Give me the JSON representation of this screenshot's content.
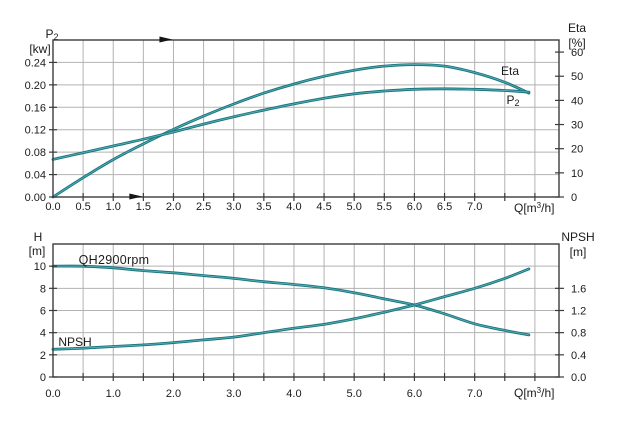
{
  "colors": {
    "curve": "#1a757e",
    "curve_highlight": "#58aeb4",
    "grid": "#b2b2b2",
    "axis": "#3c3c3c",
    "text": "#1b1b1b",
    "marker": "#151515"
  },
  "labels": {
    "top": {
      "left_title_base": "P",
      "left_title_sub": "2",
      "left_unit": "[kw]",
      "right_title": "Eta",
      "right_unit": "[%]",
      "x_title_pre": "Q[m",
      "x_title_sup": "3",
      "x_title_post": "/h]",
      "eta_curve": "Eta",
      "p2_curve_base": "P",
      "p2_curve_sub": "2"
    },
    "bottom": {
      "left_title": "H",
      "left_unit": "[m]",
      "right_title": "NPSH",
      "right_unit": "[m]",
      "x_title_pre": "Q[m",
      "x_title_sup": "3",
      "x_title_post": "/h]",
      "qh_curve": "QH2900rpm",
      "npsh_curve": "NPSH"
    }
  },
  "chart_data": [
    {
      "id": "power_efficiency",
      "type": "line",
      "title": "",
      "x_axis": {
        "label": "Q[m3/h]",
        "min": 0,
        "max": 8.4,
        "grid_step": 0.5,
        "tick_step": 0.5,
        "tick_label_values": [
          0,
          0.5,
          1.0,
          1.5,
          2.0,
          2.5,
          3.0,
          3.5,
          4.0,
          4.5,
          5.0,
          5.5,
          6.0,
          6.5,
          7.0
        ],
        "tick_labels": [
          "0.0",
          "0.5",
          "1.0",
          "1.5",
          "2.0",
          "2.5",
          "3.0",
          "3.5",
          "4.0",
          "4.5",
          "5.0",
          "5.5",
          "6.0",
          "6.5",
          "7.0"
        ]
      },
      "y_left": {
        "label": "P2 [kw]",
        "min": 0,
        "max": 0.28,
        "grid_step": 0.04,
        "tick_values": [
          0,
          0.04,
          0.08,
          0.12,
          0.16,
          0.2,
          0.24
        ],
        "tick_labels": [
          "0.00",
          "0.04",
          "0.08",
          "0.12",
          "0.16",
          "0.20",
          "0.24"
        ]
      },
      "y_right": {
        "label": "Eta [%]",
        "min": 0,
        "max": 65,
        "tick_values": [
          0,
          10,
          20,
          30,
          40,
          50,
          60
        ],
        "tick_labels": [
          "0",
          "10",
          "20",
          "30",
          "40",
          "50",
          "60"
        ]
      },
      "series": [
        {
          "name": "Eta",
          "axis": "right",
          "x": [
            0,
            0.5,
            1.0,
            1.5,
            2.0,
            2.5,
            3.0,
            3.5,
            4.0,
            4.5,
            5.0,
            5.5,
            6.0,
            6.5,
            7.0,
            7.5,
            7.9
          ],
          "y": [
            0,
            8,
            15.5,
            22,
            28,
            33.5,
            38.5,
            43,
            46.8,
            50,
            52.5,
            54.2,
            54.8,
            54.2,
            51.5,
            47.5,
            43
          ]
        },
        {
          "name": "P2",
          "axis": "left",
          "x": [
            0,
            0.5,
            1.0,
            1.5,
            2.0,
            2.5,
            3.0,
            3.5,
            4.0,
            4.5,
            5.0,
            5.5,
            6.0,
            6.5,
            7.0,
            7.5,
            7.9
          ],
          "y": [
            0.067,
            0.079,
            0.091,
            0.103,
            0.116,
            0.13,
            0.143,
            0.155,
            0.166,
            0.176,
            0.184,
            0.189,
            0.192,
            0.193,
            0.192,
            0.19,
            0.187
          ]
        }
      ],
      "markers": [
        {
          "shape": "arrow-right",
          "q": 1.9,
          "edge": "top"
        },
        {
          "shape": "arrow-right",
          "q": 1.4,
          "edge": "bottom"
        }
      ]
    },
    {
      "id": "head_npsh",
      "type": "line",
      "title": "",
      "x_axis": {
        "label": "Q[m3/h]",
        "min": 0,
        "max": 8.4,
        "grid_step": 0.5,
        "tick_step": 0.5,
        "tick_label_values": [
          0,
          1.0,
          2.0,
          3.0,
          4.0,
          5.0,
          6.0,
          7.0
        ],
        "tick_labels": [
          "0.0",
          "1.0",
          "2.0",
          "3.0",
          "4.0",
          "5.0",
          "6.0",
          "7.0"
        ]
      },
      "y_left": {
        "label": "H [m]",
        "min": 0,
        "max": 12,
        "grid_step": 2,
        "tick_values": [
          0,
          2,
          4,
          6,
          8,
          10
        ],
        "tick_labels": [
          "0",
          "2",
          "4",
          "6",
          "8",
          "10"
        ]
      },
      "y_right": {
        "label": "NPSH [m]",
        "min": 0,
        "max": 2.4,
        "tick_values": [
          0,
          0.4,
          0.8,
          1.2,
          1.6
        ],
        "tick_labels": [
          "0.0",
          "0.4",
          "0.8",
          "1.2",
          "1.6"
        ]
      },
      "series": [
        {
          "name": "QH2900rpm",
          "axis": "left",
          "x": [
            0,
            0.5,
            1.0,
            1.5,
            2.0,
            2.5,
            3.0,
            3.5,
            4.0,
            4.5,
            5.0,
            5.5,
            6.0,
            6.5,
            7.0,
            7.5,
            7.9
          ],
          "y": [
            10,
            10,
            9.85,
            9.6,
            9.4,
            9.15,
            8.9,
            8.6,
            8.35,
            8.05,
            7.6,
            7.05,
            6.5,
            5.7,
            4.8,
            4.2,
            3.8
          ]
        },
        {
          "name": "NPSH",
          "axis": "right",
          "x": [
            0,
            0.5,
            1.0,
            1.5,
            2.0,
            2.5,
            3.0,
            3.5,
            4.0,
            4.5,
            5.0,
            5.5,
            6.0,
            6.5,
            7.0,
            7.5,
            7.9
          ],
          "y": [
            0.5,
            0.52,
            0.55,
            0.58,
            0.62,
            0.67,
            0.72,
            0.8,
            0.88,
            0.95,
            1.05,
            1.17,
            1.3,
            1.45,
            1.6,
            1.78,
            1.95
          ]
        }
      ],
      "markers": []
    }
  ]
}
